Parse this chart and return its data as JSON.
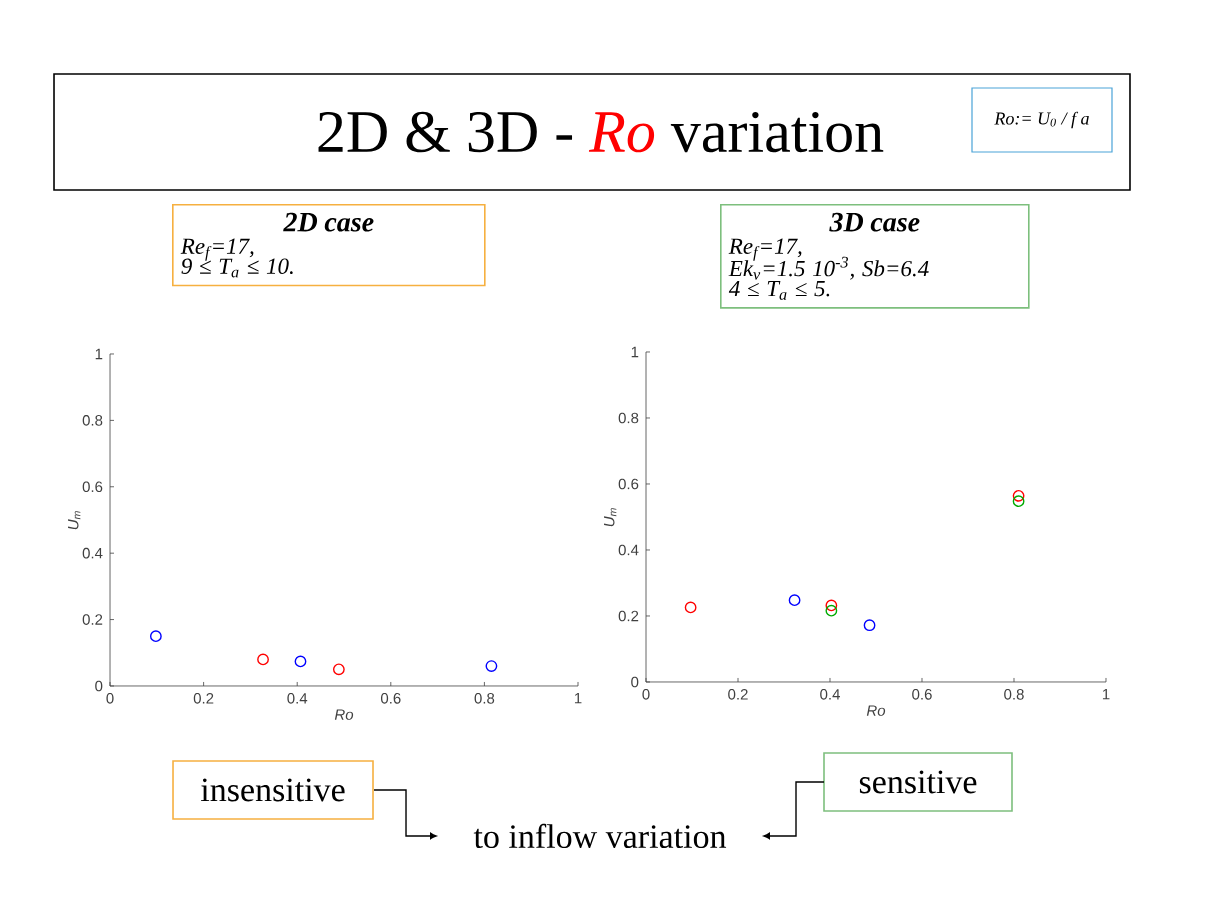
{
  "chart_data": [
    {
      "type": "other",
      "title": "2D & 3D - *Ro* variation",
      "annotations": [
        "Ro:= U$_{0}$ / f a",
        "insensitive",
        "to inflow variation",
        "sensitive"
      ]
    },
    {
      "type": "scatter",
      "title": "2D case",
      "annotations": [
        "Re$_{f}$=17,",
        "9 ≤ T$_{a}$ ≤ 10."
      ],
      "xlabel": "Ro",
      "ylabel": "U$_{m}$",
      "xlim": [
        0,
        1
      ],
      "ylim": [
        0,
        1
      ],
      "xticks": [
        0,
        0.2,
        0.4,
        0.6,
        0.8,
        1
      ],
      "yticks": [
        0,
        0.2,
        0.4,
        0.6,
        0.8,
        1
      ],
      "marker": "circle",
      "series": [
        {
          "color": "#0000ff",
          "x": [
            0.098,
            0.407,
            0.815
          ],
          "values": [
            0.15,
            0.074,
            0.06
          ]
        },
        {
          "color": "#ff0000",
          "x": [
            0.327,
            0.489
          ],
          "values": [
            0.08,
            0.05
          ]
        }
      ]
    },
    {
      "type": "scatter",
      "title": "3D case",
      "annotations": [
        "Re$_{f}$=17,",
        "Ek$_{v}$=1.5 10$^{-3}$, Sb=6.4",
        "4 ≤ T$_{a}$ ≤ 5."
      ],
      "xlabel": "Ro",
      "ylabel": "U$_{m}$",
      "xlim": [
        0,
        1
      ],
      "ylim": [
        0,
        1
      ],
      "xticks": [
        0,
        0.2,
        0.4,
        0.6,
        0.8,
        1
      ],
      "yticks": [
        0,
        0.2,
        0.4,
        0.6,
        0.8,
        1
      ],
      "marker": "circle",
      "series": [
        {
          "color": "#ff0000",
          "x": [
            0.097,
            0.403,
            0.81
          ],
          "values": [
            0.226,
            0.232,
            0.564
          ]
        },
        {
          "color": "#0000ff",
          "x": [
            0.323,
            0.486
          ],
          "values": [
            0.248,
            0.172
          ]
        },
        {
          "color": "#00aa00",
          "x": [
            0.403,
            0.81
          ],
          "values": [
            0.216,
            0.548
          ]
        }
      ]
    }
  ]
}
